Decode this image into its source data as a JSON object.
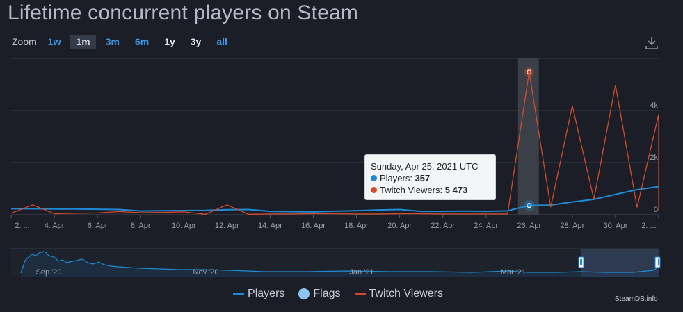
{
  "title": "Lifetime concurrent players on Steam",
  "zoom": {
    "label": "Zoom",
    "buttons": [
      "1w",
      "1m",
      "3m",
      "6m",
      "1y",
      "3y",
      "all"
    ],
    "active": "1m"
  },
  "download_icon": "download-icon",
  "tooltip": {
    "date": "Sunday, Apr 25, 2021 UTC",
    "players_label": "Players: ",
    "players_value": "357",
    "twitch_label": "Twitch Viewers: ",
    "twitch_value": "5 473"
  },
  "legend": [
    {
      "name": "Players",
      "color": "#1f8bd6"
    },
    {
      "name": "Flags",
      "color": "#90c4f0"
    },
    {
      "name": "Twitch Viewers",
      "color": "#d64a2a"
    }
  ],
  "credit": "SteamDB.info",
  "colors": {
    "players": "#1f8bd6",
    "twitch": "#d64a2a",
    "background": "#1b1e26",
    "grid": "#3a3f4a"
  },
  "chart_data": {
    "type": "line",
    "x_tick_labels": [
      "2. ...",
      "4. Apr",
      "6. Apr",
      "8. Apr",
      "10. Apr",
      "12. Apr",
      "14. Apr",
      "16. Apr",
      "18. Apr",
      "20. Apr",
      "22. Apr",
      "24. Apr",
      "26. Apr",
      "28. Apr",
      "30. Apr",
      "2. ..."
    ],
    "y_right_tick_labels": [
      "0",
      "2k",
      "4k"
    ],
    "y_right_range": [
      0,
      6000
    ],
    "highlighted_day": "Apr 25",
    "series": [
      {
        "name": "Players",
        "x": [
          1,
          2,
          3,
          4,
          5,
          6,
          7,
          8,
          9,
          10,
          11,
          12,
          13,
          14,
          15,
          16,
          17,
          18,
          19,
          20,
          21,
          22,
          23,
          24,
          25,
          26,
          27,
          28,
          29,
          30,
          31,
          32
        ],
        "values": [
          230,
          230,
          220,
          220,
          210,
          200,
          145,
          155,
          160,
          165,
          195,
          200,
          130,
          120,
          110,
          135,
          155,
          185,
          200,
          130,
          130,
          140,
          130,
          150,
          357,
          370,
          490,
          590,
          780,
          960,
          1080,
          1120
        ]
      },
      {
        "name": "Twitch Viewers",
        "x": [
          1,
          2,
          3,
          4,
          5,
          6,
          7,
          8,
          9,
          10,
          11,
          12,
          13,
          14,
          15,
          16,
          17,
          18,
          19,
          20,
          21,
          22,
          23,
          24,
          25,
          26,
          27,
          28,
          29,
          30,
          31,
          32
        ],
        "values": [
          60,
          380,
          40,
          60,
          70,
          120,
          80,
          90,
          110,
          20,
          380,
          20,
          30,
          30,
          40,
          40,
          30,
          30,
          40,
          40,
          30,
          30,
          30,
          30,
          5473,
          290,
          4180,
          590,
          4980,
          280,
          3850,
          150
        ]
      }
    ],
    "navigator": {
      "x_tick_labels": [
        "Sep '20",
        "Nov '20",
        "Jan '21",
        "Mar '21"
      ]
    }
  }
}
